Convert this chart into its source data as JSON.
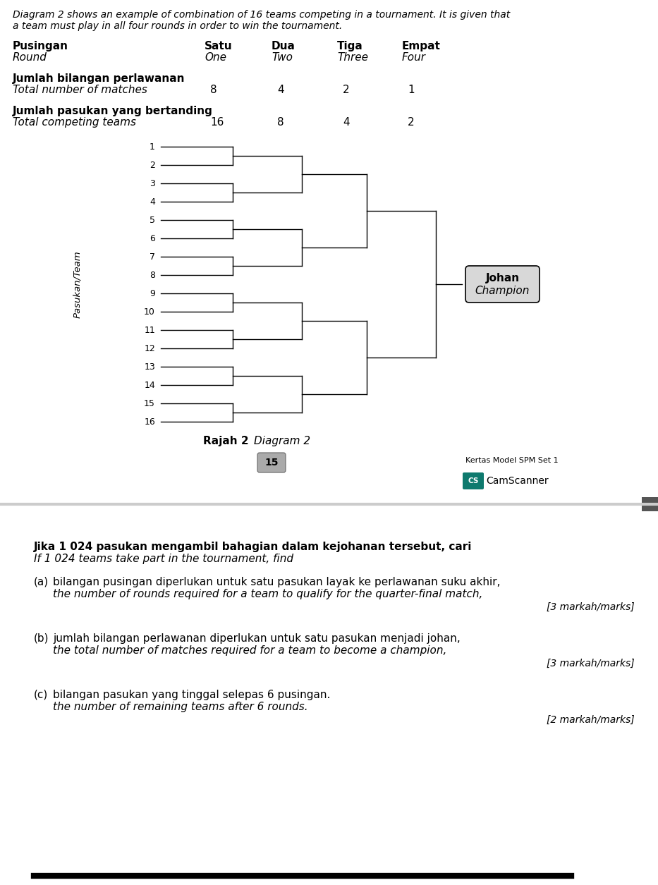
{
  "page_bg": "#ffffff",
  "top_italic_line1": "Diagram 2 shows an example of combination of 16 teams competing in a tournament. It is given that",
  "top_italic_line2": "a team must play in all four rounds in order to win the tournament.",
  "header_row1": [
    "Pusingan",
    "Satu",
    "Dua",
    "Tiga",
    "Empat"
  ],
  "header_row2": [
    "Round",
    "One",
    "Two",
    "Three",
    "Four"
  ],
  "row3_label1": "Jumlah bilangan perlawanan",
  "row3_label2": "Total number of matches",
  "row3_values": [
    "8",
    "4",
    "2",
    "1"
  ],
  "row4_label1": "Jumlah pasukan yang bertanding",
  "row4_label2": "Total competing teams",
  "row4_values": [
    "16",
    "8",
    "4",
    "2"
  ],
  "team_label_ms": "Pasukan/Team",
  "diagram_label": "Rajah 2",
  "diagram_label2": "Diagram 2",
  "page_number": "15",
  "kertas_label": "Kertas Model SPM Set 1",
  "champion_label1": "Johan",
  "champion_label2": "Champion",
  "question_text_ms": "Jika 1 024 pasukan mengambil bahagian dalam kejohanan tersebut, cari",
  "question_text_en": "If 1 024 teams take part in the tournament, find",
  "qa_label": "(a)",
  "qa_ms": "bilangan pusingan diperlukan untuk satu pasukan layak ke perlawanan suku akhir,",
  "qa_en": "the number of rounds required for a team to qualify for the quarter-final match,",
  "qa_marks": "[3 markah/marks]",
  "qb_label": "(b)",
  "qb_ms": "jumlah bilangan perlawanan diperlukan untuk satu pasukan menjadi johan,",
  "qb_en": "the total number of matches required for a team to become a champion,",
  "qb_marks": "[3 markah/marks]",
  "qc_label": "(c)",
  "qc_ms": "bilangan pasukan yang tinggal selepas 6 pusingan.",
  "qc_en": "the number of remaining teams after 6 rounds.",
  "qc_marks": "[2 markah/marks]"
}
